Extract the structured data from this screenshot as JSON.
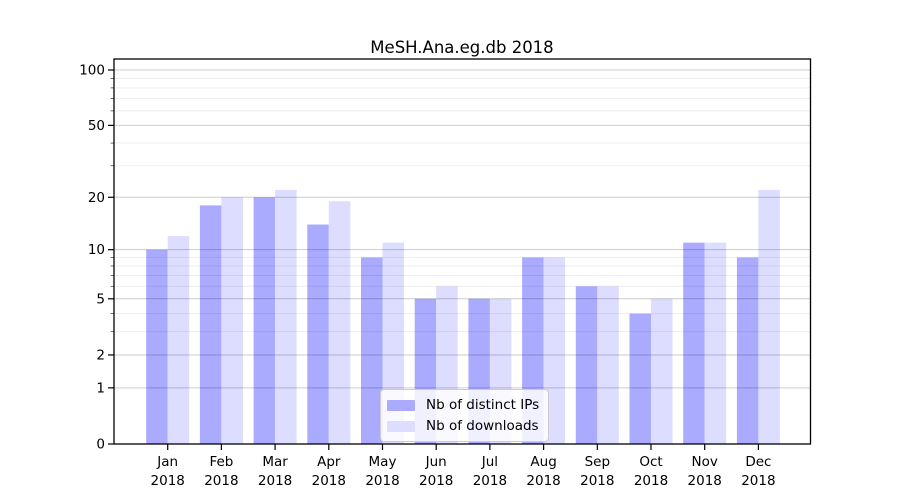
{
  "chart_data": {
    "type": "bar",
    "title": "MeSH.Ana.eg.db 2018",
    "categories": [
      "Jan",
      "Feb",
      "Mar",
      "Apr",
      "May",
      "Jun",
      "Jul",
      "Aug",
      "Sep",
      "Oct",
      "Nov",
      "Dec"
    ],
    "x_year_label": "2018",
    "series": [
      {
        "name": "Nb of distinct IPs",
        "color": "#aaaaff",
        "values": [
          10,
          18,
          20,
          14,
          9,
          5,
          5,
          9,
          6,
          4,
          11,
          9
        ]
      },
      {
        "name": "Nb of downloads",
        "color": "#ddddff",
        "values": [
          12,
          20,
          22,
          19,
          11,
          6,
          5,
          9,
          6,
          5,
          11,
          22
        ]
      }
    ],
    "y_axis": {
      "scale": "log1p",
      "ticks": [
        0,
        1,
        2,
        5,
        10,
        20,
        50,
        100
      ],
      "minor_gridlines": [
        3,
        4,
        6,
        7,
        8,
        9,
        30,
        40,
        60,
        70,
        80,
        90
      ],
      "ylim": [
        0,
        115
      ]
    },
    "grid": true,
    "legend_position": "bottom-center",
    "colors": {
      "major_grid": "rgba(0,0,0,0.20)",
      "minor_grid": "rgba(0,0,0,0.07)",
      "spine": "#000000"
    }
  }
}
